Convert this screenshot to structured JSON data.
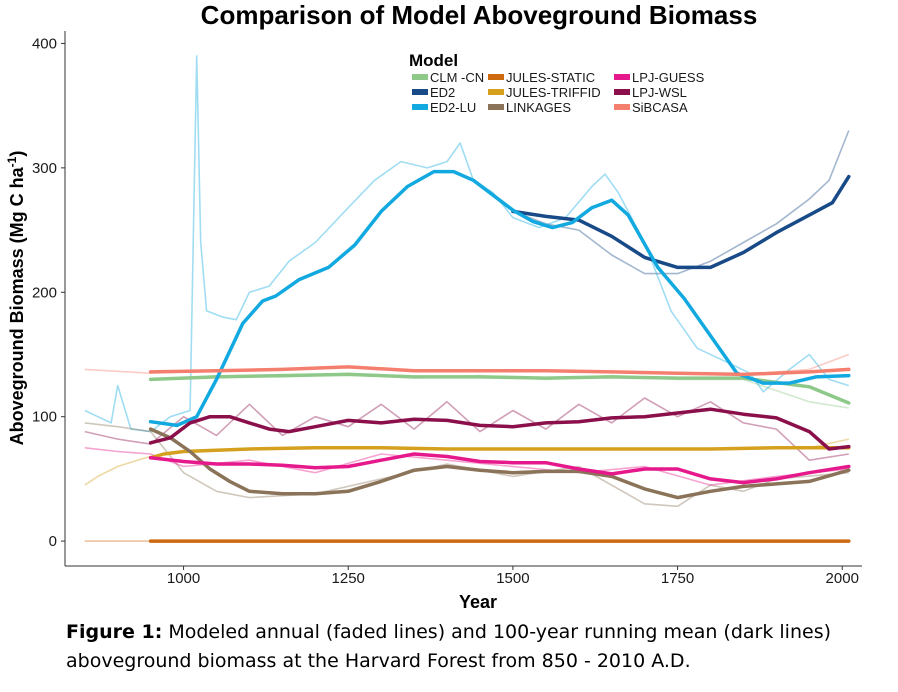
{
  "chart_data": {
    "type": "line",
    "title": "Comparison of Model Aboveground Biomass",
    "xlabel": "Year",
    "ylabel": "Aboveground Biomass (Mg C ha",
    "ylabel_sup": "-1",
    "ylabel_close": ")",
    "xlim": [
      820,
      2030
    ],
    "ylim": [
      -20,
      410
    ],
    "xticks": [
      1000,
      1250,
      1500,
      1750,
      2000
    ],
    "yticks": [
      0,
      100,
      200,
      300,
      400
    ],
    "legend_title": "Model",
    "legend_position": "top-center",
    "series": [
      {
        "name": "CLM -CN",
        "color": "#8fc98a",
        "mean": [
          [
            950,
            130
          ],
          [
            1050,
            132
          ],
          [
            1150,
            133
          ],
          [
            1250,
            134
          ],
          [
            1350,
            132
          ],
          [
            1450,
            132
          ],
          [
            1550,
            131
          ],
          [
            1650,
            132
          ],
          [
            1750,
            131
          ],
          [
            1850,
            131
          ],
          [
            1950,
            124
          ],
          [
            2010,
            111
          ]
        ],
        "annual": [
          [
            950,
            129
          ],
          [
            1050,
            133
          ],
          [
            1150,
            132
          ],
          [
            1250,
            135
          ],
          [
            1350,
            131
          ],
          [
            1450,
            133
          ],
          [
            1550,
            130
          ],
          [
            1650,
            133
          ],
          [
            1750,
            130
          ],
          [
            1850,
            130
          ],
          [
            1950,
            112
          ],
          [
            2010,
            107
          ]
        ]
      },
      {
        "name": "ED2",
        "color": "#184a87",
        "mean": [
          [
            1500,
            265
          ],
          [
            1550,
            261
          ],
          [
            1600,
            258
          ],
          [
            1650,
            245
          ],
          [
            1700,
            228
          ],
          [
            1750,
            220
          ],
          [
            1800,
            220
          ],
          [
            1850,
            232
          ],
          [
            1900,
            248
          ],
          [
            1950,
            262
          ],
          [
            1985,
            272
          ],
          [
            2010,
            293
          ]
        ],
        "annual": [
          [
            1500,
            265
          ],
          [
            1550,
            255
          ],
          [
            1600,
            250
          ],
          [
            1650,
            230
          ],
          [
            1700,
            215
          ],
          [
            1750,
            215
          ],
          [
            1800,
            225
          ],
          [
            1850,
            240
          ],
          [
            1900,
            255
          ],
          [
            1950,
            275
          ],
          [
            1980,
            290
          ],
          [
            2010,
            330
          ]
        ]
      },
      {
        "name": "ED2-LU",
        "color": "#12a9e0",
        "mean": [
          [
            950,
            96
          ],
          [
            990,
            93
          ],
          [
            1020,
            100
          ],
          [
            1050,
            130
          ],
          [
            1090,
            175
          ],
          [
            1120,
            193
          ],
          [
            1140,
            197
          ],
          [
            1175,
            210
          ],
          [
            1220,
            220
          ],
          [
            1260,
            238
          ],
          [
            1300,
            265
          ],
          [
            1340,
            285
          ],
          [
            1380,
            297
          ],
          [
            1410,
            297
          ],
          [
            1440,
            290
          ],
          [
            1470,
            278
          ],
          [
            1500,
            266
          ],
          [
            1530,
            257
          ],
          [
            1560,
            252
          ],
          [
            1590,
            256
          ],
          [
            1620,
            268
          ],
          [
            1650,
            274
          ],
          [
            1675,
            262
          ],
          [
            1720,
            220
          ],
          [
            1760,
            195
          ],
          [
            1800,
            165
          ],
          [
            1840,
            135
          ],
          [
            1880,
            127
          ],
          [
            1920,
            127
          ],
          [
            1960,
            132
          ],
          [
            2010,
            133
          ]
        ],
        "annual": [
          [
            850,
            105
          ],
          [
            870,
            100
          ],
          [
            890,
            95
          ],
          [
            900,
            125
          ],
          [
            920,
            90
          ],
          [
            950,
            88
          ],
          [
            980,
            100
          ],
          [
            1010,
            105
          ],
          [
            1020,
            390
          ],
          [
            1026,
            240
          ],
          [
            1035,
            185
          ],
          [
            1060,
            180
          ],
          [
            1080,
            178
          ],
          [
            1100,
            200
          ],
          [
            1130,
            205
          ],
          [
            1160,
            225
          ],
          [
            1200,
            240
          ],
          [
            1250,
            268
          ],
          [
            1290,
            290
          ],
          [
            1330,
            305
          ],
          [
            1370,
            300
          ],
          [
            1400,
            305
          ],
          [
            1420,
            320
          ],
          [
            1440,
            290
          ],
          [
            1470,
            280
          ],
          [
            1500,
            260
          ],
          [
            1540,
            252
          ],
          [
            1580,
            260
          ],
          [
            1620,
            285
          ],
          [
            1640,
            295
          ],
          [
            1660,
            280
          ],
          [
            1700,
            240
          ],
          [
            1740,
            185
          ],
          [
            1780,
            155
          ],
          [
            1820,
            145
          ],
          [
            1860,
            135
          ],
          [
            1880,
            120
          ],
          [
            1920,
            138
          ],
          [
            1950,
            150
          ],
          [
            1980,
            130
          ],
          [
            2010,
            125
          ]
        ]
      },
      {
        "name": "JULES-STATIC",
        "color": "#cd6a10",
        "mean": [
          [
            950,
            0
          ],
          [
            2010,
            0
          ]
        ],
        "annual": [
          [
            850,
            0
          ],
          [
            950,
            0
          ],
          [
            2010,
            0
          ]
        ]
      },
      {
        "name": "JULES-TRIFFID",
        "color": "#d4a01e",
        "mean": [
          [
            950,
            67
          ],
          [
            970,
            70
          ],
          [
            1000,
            72
          ],
          [
            1100,
            74
          ],
          [
            1200,
            75
          ],
          [
            1300,
            75
          ],
          [
            1400,
            74
          ],
          [
            1500,
            74
          ],
          [
            1600,
            74
          ],
          [
            1700,
            74
          ],
          [
            1800,
            74
          ],
          [
            1900,
            75
          ],
          [
            2010,
            75
          ]
        ],
        "annual": [
          [
            850,
            45
          ],
          [
            870,
            52
          ],
          [
            900,
            60
          ],
          [
            930,
            65
          ],
          [
            950,
            68
          ],
          [
            1000,
            72
          ],
          [
            1200,
            75
          ],
          [
            1400,
            74
          ],
          [
            1600,
            74
          ],
          [
            1800,
            74
          ],
          [
            1950,
            75
          ],
          [
            2010,
            82
          ]
        ]
      },
      {
        "name": "LINKAGES",
        "color": "#8a7358",
        "mean": [
          [
            950,
            90
          ],
          [
            980,
            83
          ],
          [
            1010,
            72
          ],
          [
            1040,
            58
          ],
          [
            1070,
            48
          ],
          [
            1100,
            40
          ],
          [
            1150,
            38
          ],
          [
            1200,
            38
          ],
          [
            1250,
            40
          ],
          [
            1300,
            48
          ],
          [
            1350,
            57
          ],
          [
            1400,
            60
          ],
          [
            1450,
            57
          ],
          [
            1500,
            55
          ],
          [
            1550,
            56
          ],
          [
            1600,
            56
          ],
          [
            1650,
            52
          ],
          [
            1700,
            42
          ],
          [
            1750,
            35
          ],
          [
            1800,
            40
          ],
          [
            1850,
            44
          ],
          [
            1900,
            46
          ],
          [
            1950,
            48
          ],
          [
            2010,
            57
          ]
        ],
        "annual": [
          [
            850,
            95
          ],
          [
            900,
            92
          ],
          [
            950,
            88
          ],
          [
            1000,
            55
          ],
          [
            1050,
            40
          ],
          [
            1100,
            35
          ],
          [
            1200,
            38
          ],
          [
            1300,
            50
          ],
          [
            1400,
            62
          ],
          [
            1500,
            52
          ],
          [
            1600,
            60
          ],
          [
            1700,
            30
          ],
          [
            1750,
            28
          ],
          [
            1800,
            45
          ],
          [
            1850,
            40
          ],
          [
            1900,
            50
          ],
          [
            2010,
            55
          ]
        ]
      },
      {
        "name": "LPJ-GUESS",
        "color": "#e6198c",
        "mean": [
          [
            950,
            67
          ],
          [
            1000,
            64
          ],
          [
            1050,
            62
          ],
          [
            1100,
            62
          ],
          [
            1150,
            61
          ],
          [
            1200,
            59
          ],
          [
            1250,
            60
          ],
          [
            1300,
            65
          ],
          [
            1350,
            70
          ],
          [
            1400,
            68
          ],
          [
            1450,
            64
          ],
          [
            1500,
            63
          ],
          [
            1550,
            63
          ],
          [
            1600,
            58
          ],
          [
            1650,
            54
          ],
          [
            1700,
            58
          ],
          [
            1750,
            58
          ],
          [
            1800,
            50
          ],
          [
            1850,
            47
          ],
          [
            1900,
            50
          ],
          [
            1950,
            55
          ],
          [
            2010,
            60
          ]
        ],
        "annual": [
          [
            850,
            75
          ],
          [
            900,
            72
          ],
          [
            950,
            70
          ],
          [
            1000,
            60
          ],
          [
            1100,
            65
          ],
          [
            1200,
            55
          ],
          [
            1300,
            70
          ],
          [
            1400,
            65
          ],
          [
            1500,
            60
          ],
          [
            1600,
            55
          ],
          [
            1700,
            60
          ],
          [
            1800,
            45
          ],
          [
            1900,
            52
          ],
          [
            2010,
            58
          ]
        ]
      },
      {
        "name": "LPJ-WSL",
        "color": "#8b0f4a",
        "mean": [
          [
            950,
            79
          ],
          [
            980,
            83
          ],
          [
            1010,
            95
          ],
          [
            1040,
            100
          ],
          [
            1070,
            100
          ],
          [
            1100,
            95
          ],
          [
            1130,
            90
          ],
          [
            1160,
            88
          ],
          [
            1200,
            92
          ],
          [
            1250,
            97
          ],
          [
            1300,
            95
          ],
          [
            1350,
            98
          ],
          [
            1400,
            97
          ],
          [
            1450,
            93
          ],
          [
            1500,
            92
          ],
          [
            1550,
            95
          ],
          [
            1600,
            96
          ],
          [
            1650,
            99
          ],
          [
            1700,
            100
          ],
          [
            1750,
            103
          ],
          [
            1800,
            106
          ],
          [
            1850,
            102
          ],
          [
            1900,
            99
          ],
          [
            1950,
            88
          ],
          [
            1980,
            74
          ],
          [
            2010,
            76
          ]
        ],
        "annual": [
          [
            850,
            88
          ],
          [
            900,
            82
          ],
          [
            950,
            78
          ],
          [
            1000,
            100
          ],
          [
            1050,
            85
          ],
          [
            1100,
            110
          ],
          [
            1150,
            85
          ],
          [
            1200,
            100
          ],
          [
            1250,
            92
          ],
          [
            1300,
            110
          ],
          [
            1350,
            90
          ],
          [
            1400,
            112
          ],
          [
            1450,
            88
          ],
          [
            1500,
            105
          ],
          [
            1550,
            90
          ],
          [
            1600,
            110
          ],
          [
            1650,
            95
          ],
          [
            1700,
            115
          ],
          [
            1750,
            100
          ],
          [
            1800,
            112
          ],
          [
            1850,
            95
          ],
          [
            1900,
            90
          ],
          [
            1950,
            65
          ],
          [
            2010,
            70
          ]
        ]
      },
      {
        "name": "SiBCASA",
        "color": "#f57f6e",
        "mean": [
          [
            950,
            136
          ],
          [
            1050,
            137
          ],
          [
            1150,
            138
          ],
          [
            1250,
            140
          ],
          [
            1350,
            137
          ],
          [
            1450,
            137
          ],
          [
            1550,
            137
          ],
          [
            1650,
            136
          ],
          [
            1750,
            135
          ],
          [
            1850,
            134
          ],
          [
            1950,
            136
          ],
          [
            2010,
            138
          ]
        ],
        "annual": [
          [
            850,
            138
          ],
          [
            950,
            135
          ],
          [
            1050,
            137
          ],
          [
            1150,
            138
          ],
          [
            1250,
            140
          ],
          [
            1350,
            137
          ],
          [
            1450,
            137
          ],
          [
            1550,
            137
          ],
          [
            1650,
            136
          ],
          [
            1750,
            135
          ],
          [
            1850,
            134
          ],
          [
            1950,
            138
          ],
          [
            2010,
            150
          ]
        ]
      }
    ]
  },
  "caption": {
    "label": "Figure 1:",
    "text": " Modeled annual (faded lines) and 100-year running mean (dark lines) aboveground biomass at the Harvard Forest from 850 - 2010 A.D."
  }
}
